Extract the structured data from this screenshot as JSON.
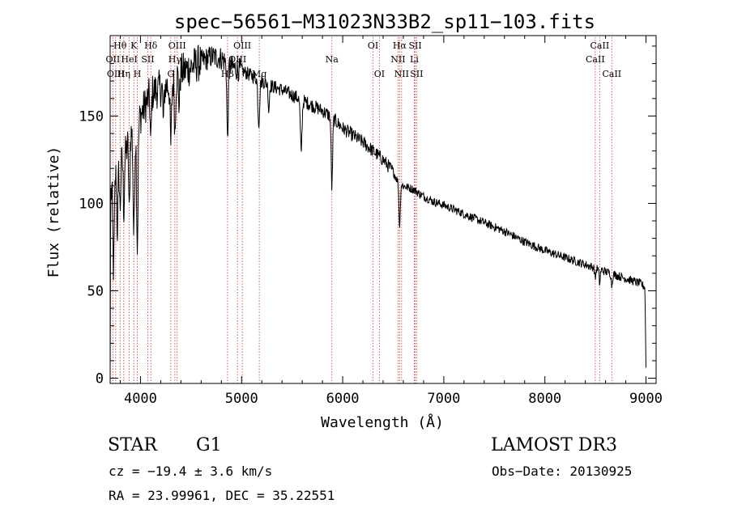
{
  "colors": {
    "line": "#000000",
    "marker": "#cc3333",
    "background": "#ffffff"
  },
  "info": {
    "classification": "STAR",
    "subclass": "G1",
    "survey": "LAMOST DR3",
    "cz": "cz = −19.4 ± 3.6 km/s",
    "obs_date": "Obs−Date: 20130925",
    "coords": "RA =  23.99961, DEC =  35.22551"
  },
  "chart_data": {
    "type": "line",
    "title": "spec−56561−M31023N33B2_sp11−103.fits",
    "xlabel": "Wavelength (Å)",
    "ylabel": "Flux (relative)",
    "xlim": [
      3700,
      9100
    ],
    "ylim": [
      -3,
      196
    ],
    "xticks": [
      {
        "value": 4000,
        "label": "4000"
      },
      {
        "value": 5000,
        "label": "5000"
      },
      {
        "value": 6000,
        "label": "6000"
      },
      {
        "value": 7000,
        "label": "7000"
      },
      {
        "value": 8000,
        "label": "8000"
      },
      {
        "value": 9000,
        "label": "9000"
      }
    ],
    "yticks": [
      {
        "value": 0,
        "label": "0"
      },
      {
        "value": 50,
        "label": "50"
      },
      {
        "value": 100,
        "label": "100"
      },
      {
        "value": 150,
        "label": "150"
      }
    ],
    "continuum": [
      [
        3700,
        0
      ],
      [
        3705,
        105
      ],
      [
        3760,
        118
      ],
      [
        3800,
        122
      ],
      [
        3850,
        128
      ],
      [
        3900,
        140
      ],
      [
        3950,
        142
      ],
      [
        4000,
        150
      ],
      [
        4100,
        163
      ],
      [
        4200,
        166
      ],
      [
        4300,
        168
      ],
      [
        4400,
        175
      ],
      [
        4500,
        178
      ],
      [
        4600,
        181
      ],
      [
        4700,
        184
      ],
      [
        4800,
        183
      ],
      [
        4900,
        178
      ],
      [
        5000,
        176
      ],
      [
        5100,
        173
      ],
      [
        5200,
        170
      ],
      [
        5300,
        167
      ],
      [
        5400,
        165
      ],
      [
        5500,
        162
      ],
      [
        5600,
        159
      ],
      [
        5700,
        156
      ],
      [
        5800,
        153
      ],
      [
        5900,
        149
      ],
      [
        6000,
        143
      ],
      [
        6100,
        139
      ],
      [
        6200,
        135
      ],
      [
        6300,
        130
      ],
      [
        6400,
        125
      ],
      [
        6500,
        118
      ],
      [
        6550,
        112
      ],
      [
        6600,
        110
      ],
      [
        6700,
        108
      ],
      [
        6800,
        104
      ],
      [
        6900,
        101
      ],
      [
        7000,
        99
      ],
      [
        7200,
        94
      ],
      [
        7400,
        89
      ],
      [
        7600,
        84
      ],
      [
        7800,
        78
      ],
      [
        8000,
        73
      ],
      [
        8200,
        69
      ],
      [
        8400,
        65
      ],
      [
        8600,
        61
      ],
      [
        8800,
        57
      ],
      [
        8950,
        54
      ],
      [
        8990,
        52
      ],
      [
        9000,
        6
      ]
    ],
    "absorption_lines": [
      {
        "center": 3734,
        "depth": 50,
        "width": 10
      },
      {
        "center": 3771,
        "depth": 35,
        "width": 8
      },
      {
        "center": 3798,
        "depth": 25,
        "width": 8
      },
      {
        "center": 3835,
        "depth": 30,
        "width": 8
      },
      {
        "center": 3889,
        "depth": 45,
        "width": 8
      },
      {
        "center": 3934,
        "depth": 60,
        "width": 10
      },
      {
        "center": 3969,
        "depth": 70,
        "width": 10
      },
      {
        "center": 4102,
        "depth": 30,
        "width": 8
      },
      {
        "center": 4227,
        "depth": 20,
        "width": 8
      },
      {
        "center": 4300,
        "depth": 35,
        "width": 10
      },
      {
        "center": 4341,
        "depth": 30,
        "width": 8
      },
      {
        "center": 4383,
        "depth": 18,
        "width": 8
      },
      {
        "center": 4861,
        "depth": 45,
        "width": 9
      },
      {
        "center": 5170,
        "depth": 25,
        "width": 12
      },
      {
        "center": 5269,
        "depth": 15,
        "width": 8
      },
      {
        "center": 5589,
        "depth": 30,
        "width": 12
      },
      {
        "center": 5893,
        "depth": 40,
        "width": 10
      },
      {
        "center": 6563,
        "depth": 25,
        "width": 9
      },
      {
        "center": 8498,
        "depth": 6,
        "width": 8
      },
      {
        "center": 8542,
        "depth": 8,
        "width": 8
      },
      {
        "center": 8662,
        "depth": 7,
        "width": 8
      }
    ],
    "markers": [
      {
        "label": "Hθ",
        "wavelength": 3798,
        "row": 0
      },
      {
        "label": "K",
        "wavelength": 3934,
        "row": 0
      },
      {
        "label": "Hδ",
        "wavelength": 4102,
        "row": 0
      },
      {
        "label": "OIII",
        "wavelength": 4363,
        "row": 0
      },
      {
        "label": "OIII",
        "wavelength": 5007,
        "row": 0
      },
      {
        "label": "OI",
        "wavelength": 6300,
        "row": 0
      },
      {
        "label": "Hα",
        "wavelength": 6563,
        "row": 0
      },
      {
        "label": "SII",
        "wavelength": 6717,
        "row": 0
      },
      {
        "label": "CaII",
        "wavelength": 8542,
        "row": 0
      },
      {
        "label": "OII",
        "wavelength": 3727,
        "row": 1
      },
      {
        "label": "HeI",
        "wavelength": 3889,
        "row": 1
      },
      {
        "label": "SII",
        "wavelength": 4072,
        "row": 1
      },
      {
        "label": "Hγ",
        "wavelength": 4340,
        "row": 1
      },
      {
        "label": "OIII",
        "wavelength": 4959,
        "row": 1
      },
      {
        "label": "Na",
        "wavelength": 5893,
        "row": 1
      },
      {
        "label": "NII",
        "wavelength": 6548,
        "row": 1
      },
      {
        "label": "Li",
        "wavelength": 6708,
        "row": 1
      },
      {
        "label": "CaII",
        "wavelength": 8498,
        "row": 1
      },
      {
        "label": "OIII",
        "wavelength": 3755,
        "row": 2
      },
      {
        "label": "Hη",
        "wavelength": 3835,
        "row": 2
      },
      {
        "label": "H",
        "wavelength": 3969,
        "row": 2
      },
      {
        "label": "G",
        "wavelength": 4300,
        "row": 2
      },
      {
        "label": "Hβ",
        "wavelength": 4861,
        "row": 2
      },
      {
        "label": "Mg",
        "wavelength": 5175,
        "row": 2
      },
      {
        "label": "OI",
        "wavelength": 6363,
        "row": 2
      },
      {
        "label": "NII",
        "wavelength": 6583,
        "row": 2
      },
      {
        "label": "SII",
        "wavelength": 6731,
        "row": 2
      },
      {
        "label": "CaII",
        "wavelength": 8662,
        "row": 2
      }
    ]
  }
}
